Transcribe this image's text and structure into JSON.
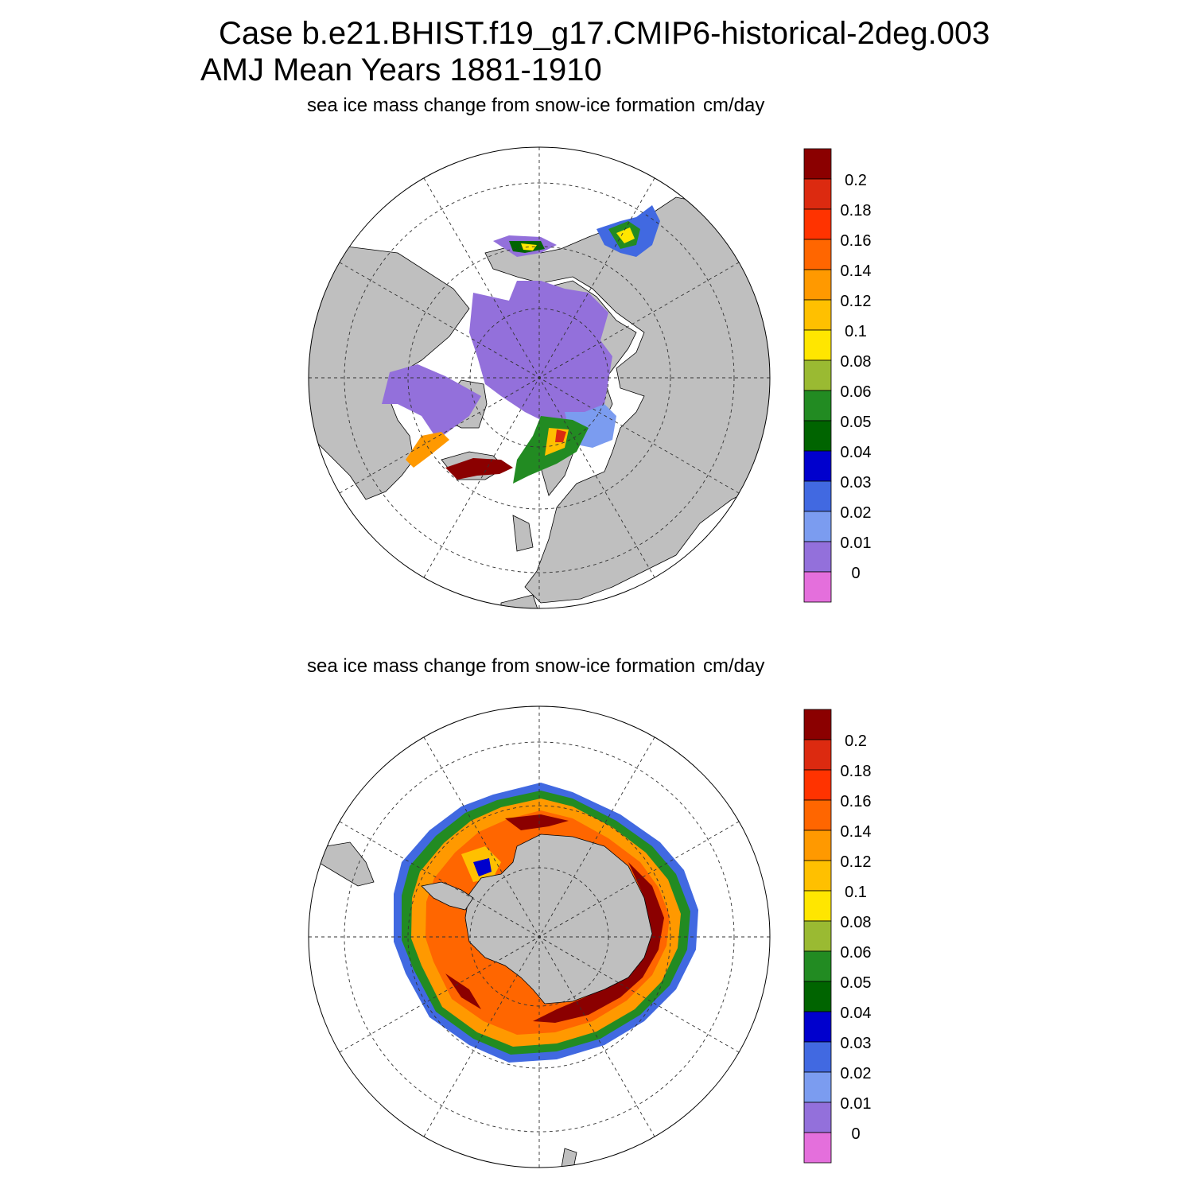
{
  "title": {
    "line1": "Case b.e21.BHIST.f19_g17.CMIP6-historical-2deg.003",
    "line2": "AMJ Mean   Years 1881-1910"
  },
  "panels": [
    {
      "id": "north",
      "hemisphere": "Arctic (north polar stereographic)",
      "left_label": "sea ice mass change from snow-ice formation",
      "right_label": "cm/day"
    },
    {
      "id": "south",
      "hemisphere": "Antarctic (south polar stereographic)",
      "left_label": "sea ice mass change from snow-ice formation",
      "right_label": "cm/day"
    }
  ],
  "colorbar": {
    "labels": [
      "0.2",
      "0.18",
      "0.16",
      "0.14",
      "0.12",
      "0.1",
      "0.08",
      "0.06",
      "0.05",
      "0.04",
      "0.03",
      "0.02",
      "0.01",
      "0"
    ],
    "colors_top_to_bottom": [
      "#8b0000",
      "#dc2a10",
      "#ff3300",
      "#ff6600",
      "#ff9900",
      "#ffc000",
      "#ffe600",
      "#9aba32",
      "#228b22",
      "#006400",
      "#0000cd",
      "#4169e1",
      "#7b9cf0",
      "#9370db",
      "#e46fdc"
    ]
  },
  "colors": {
    "land": "#bfbfbf",
    "ocean": "#ffffff",
    "frame": "#000000"
  }
}
